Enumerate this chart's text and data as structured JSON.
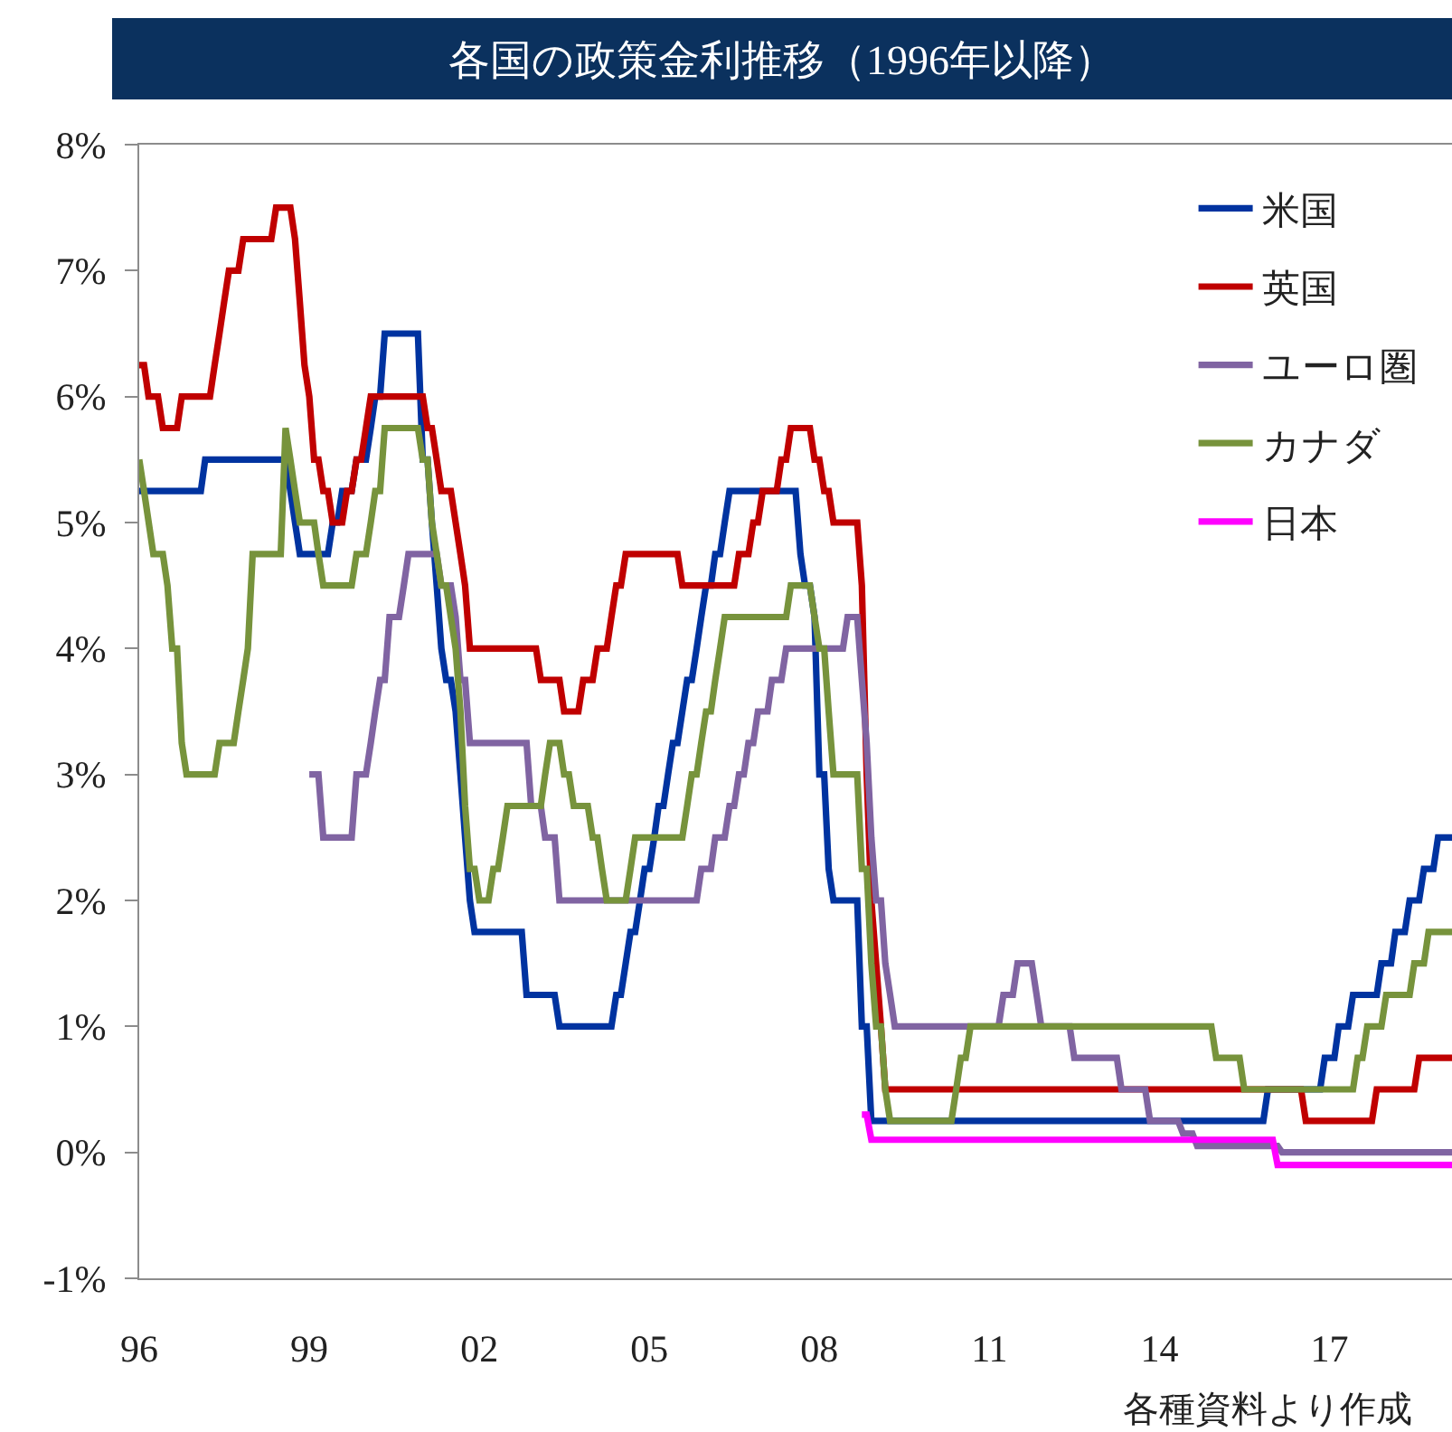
{
  "chart_data": {
    "type": "line",
    "title": "各国の政策金利推移（1996年以降）",
    "annotations": [
      "各種資料より作成"
    ],
    "xlim": [
      "1996-01",
      "2019-03"
    ],
    "xticks": [
      {
        "value": "1996",
        "label": "96"
      },
      {
        "value": "1999",
        "label": "99"
      },
      {
        "value": "2002",
        "label": "02"
      },
      {
        "value": "2005",
        "label": "05"
      },
      {
        "value": "2008",
        "label": "08"
      },
      {
        "value": "2011",
        "label": "11"
      },
      {
        "value": "2014",
        "label": "14"
      },
      {
        "value": "2017",
        "label": "17"
      }
    ],
    "ylim": [
      -1,
      8
    ],
    "yticks": [
      {
        "value": -1,
        "label": "-1%"
      },
      {
        "value": 0,
        "label": "0%"
      },
      {
        "value": 1,
        "label": "1%"
      },
      {
        "value": 2,
        "label": "2%"
      },
      {
        "value": 3,
        "label": "3%"
      },
      {
        "value": 4,
        "label": "4%"
      },
      {
        "value": 5,
        "label": "5%"
      },
      {
        "value": 6,
        "label": "6%"
      },
      {
        "value": 7,
        "label": "7%"
      },
      {
        "value": 8,
        "label": "8%"
      }
    ],
    "legend": "top right",
    "series": [
      {
        "name": "米国",
        "color": "#0033a0",
        "x": [
          "1996-01",
          "1997-02",
          "1997-03",
          "1998-08",
          "1998-09",
          "1998-10",
          "1998-11",
          "1999-05",
          "1999-06",
          "1999-07",
          "1999-08",
          "1999-10",
          "1999-11",
          "2000-01",
          "2000-02",
          "2000-03",
          "2000-04",
          "2000-05",
          "2000-12",
          "2001-01",
          "2001-02",
          "2001-03",
          "2001-04",
          "2001-05",
          "2001-06",
          "2001-07",
          "2001-08",
          "2001-09",
          "2001-10",
          "2001-11",
          "2001-12",
          "2002-10",
          "2002-11",
          "2003-05",
          "2003-06",
          "2004-05",
          "2004-06",
          "2004-07",
          "2004-08",
          "2004-09",
          "2004-10",
          "2004-11",
          "2004-12",
          "2005-01",
          "2005-02",
          "2005-03",
          "2005-04",
          "2005-05",
          "2005-06",
          "2005-07",
          "2005-08",
          "2005-09",
          "2005-10",
          "2005-11",
          "2005-12",
          "2006-01",
          "2006-02",
          "2006-03",
          "2006-04",
          "2006-05",
          "2006-06",
          "2007-08",
          "2007-09",
          "2007-10",
          "2007-11",
          "2007-12",
          "2008-01",
          "2008-02",
          "2008-03",
          "2008-04",
          "2008-09",
          "2008-10",
          "2008-11",
          "2008-12",
          "2015-11",
          "2015-12",
          "2016-11",
          "2016-12",
          "2017-02",
          "2017-03",
          "2017-05",
          "2017-06",
          "2017-11",
          "2017-12",
          "2018-02",
          "2018-03",
          "2018-05",
          "2018-06",
          "2018-08",
          "2018-09",
          "2018-11",
          "2018-12",
          "2019-03"
        ],
        "values": [
          5.25,
          5.25,
          5.5,
          5.5,
          5.25,
          5,
          4.75,
          4.75,
          5,
          5,
          5.25,
          5.25,
          5.5,
          5.5,
          5.75,
          6,
          6,
          6.5,
          6.5,
          5.5,
          5.5,
          5,
          4.5,
          4,
          3.75,
          3.75,
          3.5,
          3,
          2.5,
          2,
          1.75,
          1.75,
          1.25,
          1.25,
          1,
          1,
          1.25,
          1.25,
          1.5,
          1.75,
          1.75,
          2,
          2.25,
          2.25,
          2.5,
          2.75,
          2.75,
          3,
          3.25,
          3.25,
          3.5,
          3.75,
          3.75,
          4,
          4.25,
          4.5,
          4.5,
          4.75,
          4.75,
          5,
          5.25,
          5.25,
          4.75,
          4.5,
          4.5,
          4.25,
          3,
          3,
          2.25,
          2,
          2,
          1,
          1,
          0.25,
          0.25,
          0.5,
          0.5,
          0.75,
          0.75,
          1,
          1,
          1.25,
          1.25,
          1.5,
          1.5,
          1.75,
          1.75,
          2,
          2,
          2.25,
          2.25,
          2.5,
          2.5
        ]
      },
      {
        "name": "英国",
        "color": "#c00000",
        "x": [
          "1996-01",
          "1996-02",
          "1996-03",
          "1996-05",
          "1996-06",
          "1996-09",
          "1996-10",
          "1997-04",
          "1997-05",
          "1997-06",
          "1997-07",
          "1997-08",
          "1997-10",
          "1997-11",
          "1998-05",
          "1998-06",
          "1998-09",
          "1998-10",
          "1998-11",
          "1998-12",
          "1999-01",
          "1999-02",
          "1999-03",
          "1999-04",
          "1999-05",
          "1999-06",
          "1999-08",
          "1999-09",
          "1999-10",
          "1999-11",
          "1999-12",
          "2000-01",
          "2000-02",
          "2001-01",
          "2001-02",
          "2001-03",
          "2001-04",
          "2001-05",
          "2001-07",
          "2001-08",
          "2001-09",
          "2001-10",
          "2001-11",
          "2003-01",
          "2003-02",
          "2003-06",
          "2003-07",
          "2003-10",
          "2003-11",
          "2004-01",
          "2004-02",
          "2004-04",
          "2004-05",
          "2004-06",
          "2004-07",
          "2004-08",
          "2005-07",
          "2005-08",
          "2006-07",
          "2006-08",
          "2006-10",
          "2006-11",
          "2006-12",
          "2007-01",
          "2007-04",
          "2007-05",
          "2007-06",
          "2007-07",
          "2007-11",
          "2007-12",
          "2008-01",
          "2008-02",
          "2008-03",
          "2008-04",
          "2008-09",
          "2008-10",
          "2008-11",
          "2008-12",
          "2009-01",
          "2009-02",
          "2009-03",
          "2016-07",
          "2016-08",
          "2017-10",
          "2017-11",
          "2018-07",
          "2018-08",
          "2019-03"
        ],
        "values": [
          6.25,
          6.25,
          6,
          6,
          5.75,
          5.75,
          6,
          6,
          6.25,
          6.5,
          6.75,
          7,
          7,
          7.25,
          7.25,
          7.5,
          7.5,
          7.25,
          6.75,
          6.25,
          6,
          5.5,
          5.5,
          5.25,
          5.25,
          5,
          5,
          5.25,
          5.25,
          5.5,
          5.5,
          5.75,
          6,
          6,
          5.75,
          5.75,
          5.5,
          5.25,
          5.25,
          5,
          4.75,
          4.5,
          4,
          4,
          3.75,
          3.75,
          3.5,
          3.5,
          3.75,
          3.75,
          4,
          4,
          4.25,
          4.5,
          4.5,
          4.75,
          4.75,
          4.5,
          4.5,
          4.75,
          4.75,
          5,
          5,
          5.25,
          5.25,
          5.5,
          5.5,
          5.75,
          5.75,
          5.5,
          5.5,
          5.25,
          5.25,
          5,
          5,
          4.5,
          3,
          2,
          1.5,
          1,
          0.5,
          0.5,
          0.25,
          0.25,
          0.5,
          0.5,
          0.75,
          0.75
        ]
      },
      {
        "name": "ユーロ圏",
        "color": "#8064a2",
        "x": [
          "1999-01",
          "1999-03",
          "1999-04",
          "1999-10",
          "1999-11",
          "2000-01",
          "2000-02",
          "2000-03",
          "2000-04",
          "2000-05",
          "2000-06",
          "2000-08",
          "2000-09",
          "2000-10",
          "2001-04",
          "2001-05",
          "2001-07",
          "2001-08",
          "2001-09",
          "2001-10",
          "2001-11",
          "2002-11",
          "2002-12",
          "2003-02",
          "2003-03",
          "2003-05",
          "2003-06",
          "2005-11",
          "2005-12",
          "2006-02",
          "2006-03",
          "2006-05",
          "2006-06",
          "2006-07",
          "2006-08",
          "2006-09",
          "2006-10",
          "2006-11",
          "2006-12",
          "2007-02",
          "2007-03",
          "2007-05",
          "2007-06",
          "2008-06",
          "2008-07",
          "2008-09",
          "2008-10",
          "2008-11",
          "2008-12",
          "2009-01",
          "2009-02",
          "2009-03",
          "2009-04",
          "2009-05",
          "2011-03",
          "2011-04",
          "2011-06",
          "2011-07",
          "2011-10",
          "2011-11",
          "2011-12",
          "2012-06",
          "2012-07",
          "2013-04",
          "2013-05",
          "2013-10",
          "2013-11",
          "2014-05",
          "2014-06",
          "2014-08",
          "2014-09",
          "2016-02",
          "2016-03",
          "2019-03"
        ],
        "values": [
          3,
          3,
          2.5,
          2.5,
          3,
          3,
          3.25,
          3.5,
          3.75,
          3.75,
          4.25,
          4.25,
          4.5,
          4.75,
          4.75,
          4.5,
          4.5,
          4.25,
          3.75,
          3.75,
          3.25,
          3.25,
          2.75,
          2.75,
          2.5,
          2.5,
          2,
          2,
          2.25,
          2.25,
          2.5,
          2.5,
          2.75,
          2.75,
          3,
          3,
          3.25,
          3.25,
          3.5,
          3.5,
          3.75,
          3.75,
          4,
          4,
          4.25,
          4.25,
          3.75,
          3.25,
          2.5,
          2,
          2,
          1.5,
          1.25,
          1,
          1,
          1.25,
          1.25,
          1.5,
          1.5,
          1.25,
          1,
          1,
          0.75,
          0.75,
          0.5,
          0.5,
          0.25,
          0.25,
          0.15,
          0.15,
          0.05,
          0.05,
          0,
          0
        ]
      },
      {
        "name": "カナダ",
        "color": "#77933c",
        "x": [
          "1996-01",
          "1996-02",
          "1996-04",
          "1996-06",
          "1996-07",
          "1996-08",
          "1996-09",
          "1996-10",
          "1996-11",
          "1997-05",
          "1997-06",
          "1997-09",
          "1997-10",
          "1997-11",
          "1997-12",
          "1998-01",
          "1998-07",
          "1998-08",
          "1998-09",
          "1998-10",
          "1998-11",
          "1999-02",
          "1999-03",
          "1999-04",
          "1999-10",
          "1999-11",
          "2000-01",
          "2000-02",
          "2000-03",
          "2000-04",
          "2000-05",
          "2000-12",
          "2001-01",
          "2001-02",
          "2001-03",
          "2001-04",
          "2001-05",
          "2001-06",
          "2001-07",
          "2001-08",
          "2001-09",
          "2001-10",
          "2001-11",
          "2001-12",
          "2002-01",
          "2002-03",
          "2002-04",
          "2002-05",
          "2002-06",
          "2002-07",
          "2003-02",
          "2003-03",
          "2003-04",
          "2003-06",
          "2003-07",
          "2003-08",
          "2003-09",
          "2003-12",
          "2004-01",
          "2004-02",
          "2004-03",
          "2004-04",
          "2004-08",
          "2004-09",
          "2004-10",
          "2005-08",
          "2005-09",
          "2005-10",
          "2005-11",
          "2005-12",
          "2006-01",
          "2006-02",
          "2006-03",
          "2006-04",
          "2006-05",
          "2007-06",
          "2007-07",
          "2007-11",
          "2007-12",
          "2008-01",
          "2008-02",
          "2008-03",
          "2008-04",
          "2008-09",
          "2008-10",
          "2008-11",
          "2008-12",
          "2009-01",
          "2009-02",
          "2009-03",
          "2009-04",
          "2010-05",
          "2010-06",
          "2010-07",
          "2010-08",
          "2010-09",
          "2014-12",
          "2015-01",
          "2015-06",
          "2015-07",
          "2017-06",
          "2017-07",
          "2017-08",
          "2017-09",
          "2017-12",
          "2018-01",
          "2018-06",
          "2018-07",
          "2018-09",
          "2018-10",
          "2019-03"
        ],
        "values": [
          5.5,
          5.25,
          4.75,
          4.75,
          4.5,
          4,
          4,
          3.25,
          3,
          3,
          3.25,
          3.25,
          3.5,
          3.75,
          4,
          4.75,
          4.75,
          5.75,
          5.5,
          5.25,
          5,
          5,
          4.75,
          4.5,
          4.5,
          4.75,
          4.75,
          5,
          5.25,
          5.25,
          5.75,
          5.75,
          5.5,
          5.5,
          5,
          4.75,
          4.5,
          4.5,
          4.25,
          4,
          3.5,
          2.75,
          2.25,
          2.25,
          2,
          2,
          2.25,
          2.25,
          2.5,
          2.75,
          2.75,
          3,
          3.25,
          3.25,
          3,
          3,
          2.75,
          2.75,
          2.5,
          2.5,
          2.25,
          2,
          2,
          2.25,
          2.5,
          2.5,
          2.75,
          3,
          3,
          3.25,
          3.5,
          3.5,
          3.75,
          4,
          4.25,
          4.25,
          4.5,
          4.5,
          4.25,
          4,
          4,
          3.5,
          3,
          3,
          2.25,
          2.25,
          1.5,
          1,
          1,
          0.5,
          0.25,
          0.25,
          0.5,
          0.75,
          0.75,
          1,
          1,
          0.75,
          0.75,
          0.5,
          0.5,
          0.75,
          0.75,
          1,
          1,
          1.25,
          1.25,
          1.5,
          1.5,
          1.75,
          1.75
        ]
      },
      {
        "name": "日本",
        "color": "#ff00ff",
        "x": [
          "2008-10",
          "2008-11",
          "2008-12",
          "2016-01",
          "2016-02",
          "2019-03"
        ],
        "values": [
          0.3,
          0.3,
          0.1,
          0.1,
          -0.1,
          -0.1
        ]
      }
    ]
  }
}
